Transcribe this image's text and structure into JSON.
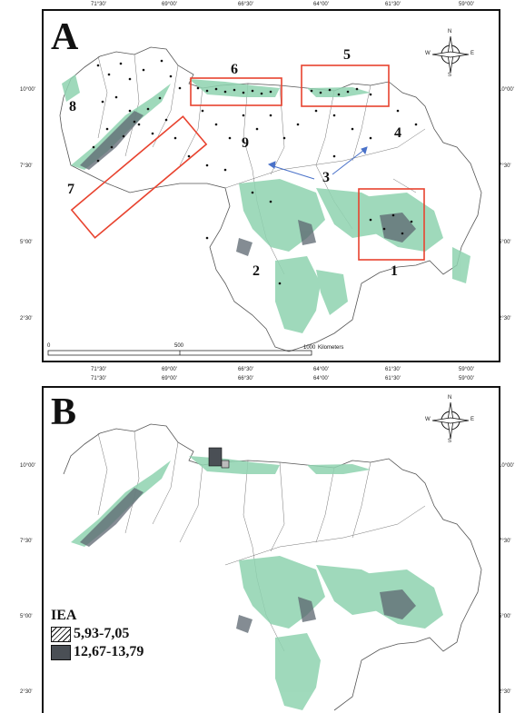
{
  "panel_a": {
    "letter": "A",
    "region_labels": [
      "1",
      "2",
      "3",
      "4",
      "5",
      "6",
      "7",
      "8",
      "9"
    ],
    "scale": {
      "start": "0",
      "mid": "500",
      "end": "1000",
      "unit": "Kilometers"
    }
  },
  "panel_b": {
    "letter": "B",
    "legend": {
      "title": "IEA",
      "items": [
        {
          "label": "5,93-7,05",
          "style": "hatched"
        },
        {
          "label": "12,67-13,79",
          "style": "dark"
        }
      ]
    }
  },
  "lon_ticks": [
    "71°30'",
    "69°00'",
    "66°30'",
    "64°00'",
    "61°30'",
    "59°00'"
  ],
  "lat_ticks": [
    "10°00'",
    "7°30'",
    "5°00'",
    "2°30'"
  ],
  "compass": {
    "n": "N",
    "s": "S",
    "e": "E",
    "w": "W"
  },
  "colors": {
    "habitat_green": "#8fd3b0",
    "highland_gray": "#5c6670",
    "highlight_box": "#e8432f",
    "arrow_blue": "#4a72c9",
    "outline": "#555555"
  }
}
